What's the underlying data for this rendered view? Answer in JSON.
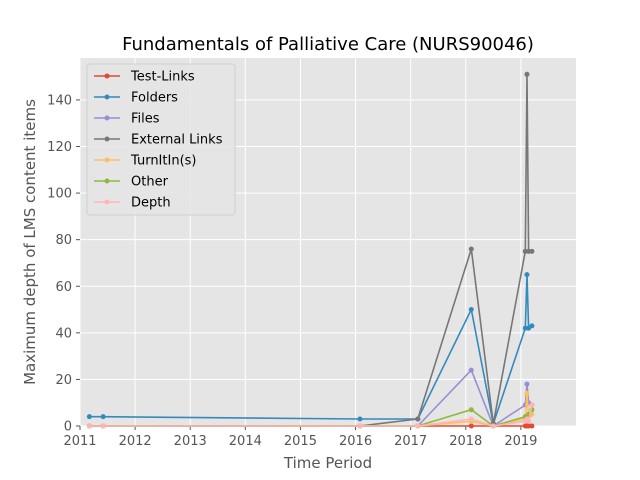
{
  "chart_data": {
    "type": "line",
    "title": "Fundamentals of Palliative Care (NURS90046)",
    "xlabel": "Time Period",
    "ylabel": "Maximum depth of LMS content items",
    "xlim": [
      2011.0,
      2020.0
    ],
    "ylim": [
      0,
      158
    ],
    "xticks": [
      2011,
      2012,
      2013,
      2014,
      2015,
      2016,
      2017,
      2018,
      2019
    ],
    "yticks": [
      0,
      20,
      40,
      60,
      80,
      100,
      120,
      140
    ],
    "grid": true,
    "legend_position": "upper left",
    "x": [
      2011.17,
      2011.42,
      2016.08,
      2017.13,
      2018.1,
      2018.5,
      2019.08,
      2019.11,
      2019.14,
      2019.2
    ],
    "series": [
      {
        "name": "Test-Links",
        "color": "#E24A33",
        "values": [
          0,
          0,
          0,
          0,
          0,
          0,
          0,
          0,
          0,
          0
        ]
      },
      {
        "name": "Folders",
        "color": "#348ABD",
        "values": [
          4,
          4,
          3,
          3,
          50,
          1,
          42,
          65,
          42,
          43
        ]
      },
      {
        "name": "Files",
        "color": "#988ED5",
        "values": [
          0,
          0,
          0,
          0,
          24,
          0,
          9,
          18,
          10,
          9
        ]
      },
      {
        "name": "External Links",
        "color": "#777777",
        "values": [
          0,
          0,
          0,
          3,
          76,
          1,
          75,
          151,
          75,
          75
        ]
      },
      {
        "name": "TurnItIn(s)",
        "color": "#FBC15E",
        "values": [
          0,
          0,
          0,
          0,
          2,
          0,
          3,
          14,
          4,
          5
        ]
      },
      {
        "name": "Other",
        "color": "#8EBA42",
        "values": [
          0,
          0,
          0,
          0,
          7,
          0,
          4,
          4,
          5,
          7
        ]
      },
      {
        "name": "Depth",
        "color": "#FFB5B8",
        "values": [
          0,
          0,
          0,
          0,
          3,
          0,
          2,
          3,
          2,
          9
        ]
      }
    ]
  }
}
